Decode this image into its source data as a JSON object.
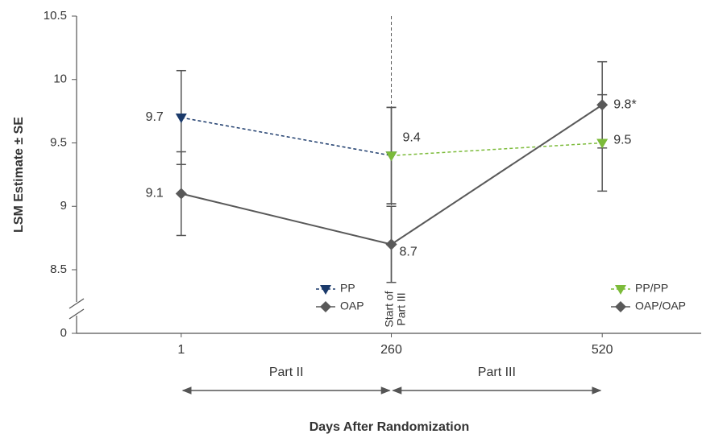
{
  "chart_data": {
    "type": "line",
    "y_label": "LSM Estimate ± SE",
    "x_label": "Days After Randomization",
    "xlim": [
      -128,
      642
    ],
    "xticks": [
      1,
      260,
      520
    ],
    "ylim": [
      0,
      10.5
    ],
    "ybreak": [
      0,
      8.5
    ],
    "yticks": [
      0,
      8.5,
      9,
      9.5,
      10,
      10.5
    ],
    "series": [
      {
        "name": "PP",
        "color": "#1b3a6b",
        "marker": "triangle-down",
        "dashed": true,
        "legend": "bottom-center",
        "x": [
          1,
          260
        ],
        "values": [
          9.7,
          9.4
        ],
        "errors": [
          0.37,
          0.38
        ],
        "value_labels": [
          "9.7",
          null
        ]
      },
      {
        "name": "OAP",
        "color": "#595959",
        "marker": "diamond",
        "dashed": false,
        "legend": "bottom-center",
        "x": [
          1,
          260
        ],
        "values": [
          9.1,
          8.7
        ],
        "errors": [
          0.33,
          0.3
        ],
        "value_labels": [
          "9.1",
          "8.7"
        ]
      },
      {
        "name": "PP/PP",
        "color": "#7cbb3a",
        "marker": "triangle-down",
        "dashed": true,
        "legend": "bottom-right",
        "x": [
          260,
          520
        ],
        "values": [
          9.4,
          9.5
        ],
        "errors": [
          0.38,
          0.38
        ],
        "value_labels": [
          "9.4",
          "9.5"
        ]
      },
      {
        "name": "OAP/OAP",
        "color": "#595959",
        "marker": "diamond",
        "dashed": false,
        "legend": "bottom-right",
        "x": [
          260,
          520
        ],
        "values": [
          8.7,
          9.8
        ],
        "errors": [
          0.3,
          0.34
        ],
        "value_labels": [
          null,
          "9.8*"
        ]
      }
    ],
    "vline": {
      "x": 260,
      "label": "Start of Part III"
    },
    "spans": [
      {
        "label": "Part II",
        "from": 1,
        "to": 260
      },
      {
        "label": "Part III",
        "from": 260,
        "to": 520
      }
    ]
  }
}
